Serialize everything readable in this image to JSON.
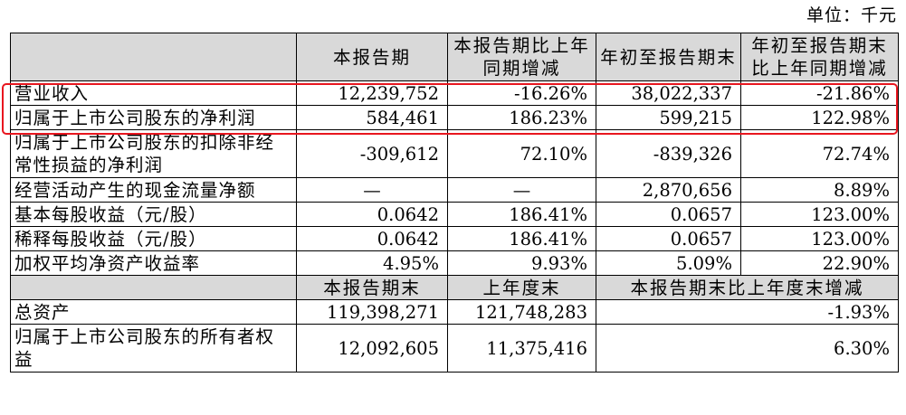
{
  "unit_label": "单位：千元",
  "header": {
    "col1": "本报告期",
    "col2": "本报告期比上年同期增减",
    "col3": "年初至报告期末",
    "col4": "年初至报告期末比上年同期增减"
  },
  "rows": [
    {
      "label": "营业收入",
      "v1": "12,239,752",
      "v2": "-16.26%",
      "v3": "38,022,337",
      "v4": "-21.86%"
    },
    {
      "label": "归属于上市公司股东的净利润",
      "v1": "584,461",
      "v2": "186.23%",
      "v3": "599,215",
      "v4": "122.98%"
    },
    {
      "label": "归属于上市公司股东的扣除非经常性损益的净利润",
      "v1": "-309,612",
      "v2": "72.10%",
      "v3": "-839,326",
      "v4": "72.74%"
    },
    {
      "label": "经营活动产生的现金流量净额",
      "v1": "—",
      "v2": "—",
      "v3": "2,870,656",
      "v4": "8.89%"
    },
    {
      "label": "基本每股收益（元/股）",
      "v1": "0.0642",
      "v2": "186.41%",
      "v3": "0.0657",
      "v4": "123.00%"
    },
    {
      "label": "稀释每股收益（元/股）",
      "v1": "0.0642",
      "v2": "186.41%",
      "v3": "0.0657",
      "v4": "123.00%"
    },
    {
      "label": "加权平均净资产收益率",
      "v1": "4.95%",
      "v2": "9.93%",
      "v3": "5.09%",
      "v4": "22.90%"
    }
  ],
  "header2": {
    "col1": "本报告期末",
    "col2": "上年度末",
    "col3": "本报告期末比上年度末增减"
  },
  "rows2": [
    {
      "label": "总资产",
      "v1": "119,398,271",
      "v2": "121,748,283",
      "v3": "-1.93%"
    },
    {
      "label": "归属于上市公司股东的所有者权益",
      "v1": "12,092,605",
      "v2": "11,375,416",
      "v3": "6.30%"
    }
  ],
  "highlight_color": "#e8161f",
  "header_bg": "#d9d9d9"
}
